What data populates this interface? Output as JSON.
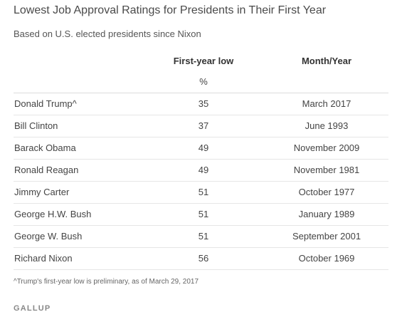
{
  "chart_data": {
    "type": "table",
    "title": "Lowest Job Approval Ratings for Presidents in Their First Year",
    "subtitle": "Based on U.S. elected presidents since Nixon",
    "columns": [
      "",
      "First-year low",
      "Month/Year"
    ],
    "unit": "%",
    "rows": [
      {
        "president": "Donald Trump^",
        "low": 35,
        "date": "March 2017"
      },
      {
        "president": "Bill Clinton",
        "low": 37,
        "date": "June 1993"
      },
      {
        "president": "Barack Obama",
        "low": 49,
        "date": "November 2009"
      },
      {
        "president": "Ronald Reagan",
        "low": 49,
        "date": "November 1981"
      },
      {
        "president": "Jimmy Carter",
        "low": 51,
        "date": "October 1977"
      },
      {
        "president": "George H.W. Bush",
        "low": 51,
        "date": "January 1989"
      },
      {
        "president": "George W. Bush",
        "low": 51,
        "date": "September 2001"
      },
      {
        "president": "Richard Nixon",
        "low": 56,
        "date": "October 1969"
      }
    ],
    "footnote": "^Trump's first-year low is preliminary, as of March 29, 2017"
  },
  "brand": "GALLUP"
}
